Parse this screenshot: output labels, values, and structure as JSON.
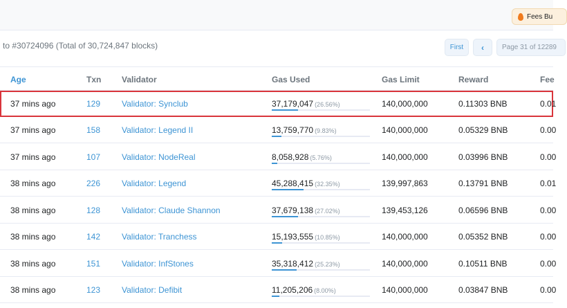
{
  "header": {
    "fees_badge": "Fees Bu"
  },
  "summary_text": "to #30724096 (Total of 30,724,847 blocks)",
  "pagination": {
    "first": "First",
    "prev": "‹",
    "page_info": "Page 31 of 12289"
  },
  "columns": {
    "age": "Age",
    "txn": "Txn",
    "validator": "Validator",
    "gas_used": "Gas Used",
    "gas_limit": "Gas Limit",
    "reward": "Reward",
    "fee": "Fee"
  },
  "rows": [
    {
      "age": "37 mins ago",
      "txn": "129",
      "validator": "Validator: Synclub",
      "gas_used": "37,179,047",
      "gas_pct": "(26.56%)",
      "gas_frac": 0.2656,
      "gas_limit": "140,000,000",
      "reward": "0.11303 BNB",
      "fee": "0.01"
    },
    {
      "age": "37 mins ago",
      "txn": "158",
      "validator": "Validator: Legend II",
      "gas_used": "13,759,770",
      "gas_pct": "(9.83%)",
      "gas_frac": 0.0983,
      "gas_limit": "140,000,000",
      "reward": "0.05329 BNB",
      "fee": "0.00"
    },
    {
      "age": "37 mins ago",
      "txn": "107",
      "validator": "Validator: NodeReal",
      "gas_used": "8,058,928",
      "gas_pct": "(5.76%)",
      "gas_frac": 0.0576,
      "gas_limit": "140,000,000",
      "reward": "0.03996 BNB",
      "fee": "0.00"
    },
    {
      "age": "38 mins ago",
      "txn": "226",
      "validator": "Validator: Legend",
      "gas_used": "45,288,415",
      "gas_pct": "(32.35%)",
      "gas_frac": 0.3235,
      "gas_limit": "139,997,863",
      "reward": "0.13791 BNB",
      "fee": "0.01"
    },
    {
      "age": "38 mins ago",
      "txn": "128",
      "validator": "Validator: Claude Shannon",
      "gas_used": "37,679,138",
      "gas_pct": "(27.02%)",
      "gas_frac": 0.2702,
      "gas_limit": "139,453,126",
      "reward": "0.06596 BNB",
      "fee": "0.00"
    },
    {
      "age": "38 mins ago",
      "txn": "142",
      "validator": "Validator: Tranchess",
      "gas_used": "15,193,555",
      "gas_pct": "(10.85%)",
      "gas_frac": 0.1085,
      "gas_limit": "140,000,000",
      "reward": "0.05352 BNB",
      "fee": "0.00"
    },
    {
      "age": "38 mins ago",
      "txn": "151",
      "validator": "Validator: InfStones",
      "gas_used": "35,318,412",
      "gas_pct": "(25.23%)",
      "gas_frac": 0.2523,
      "gas_limit": "140,000,000",
      "reward": "0.10511 BNB",
      "fee": "0.00"
    },
    {
      "age": "38 mins ago",
      "txn": "123",
      "validator": "Validator: Defibit",
      "gas_used": "11,205,206",
      "gas_pct": "(8.00%)",
      "gas_frac": 0.08,
      "gas_limit": "140,000,000",
      "reward": "0.03847 BNB",
      "fee": "0.00"
    }
  ],
  "colors": {
    "link": "#3d94d4",
    "highlight_border": "#d9343b",
    "badge_bg": "#fcf0de",
    "flame": "#f07b1d"
  },
  "icons": {
    "fees_badge": "flame-icon"
  }
}
